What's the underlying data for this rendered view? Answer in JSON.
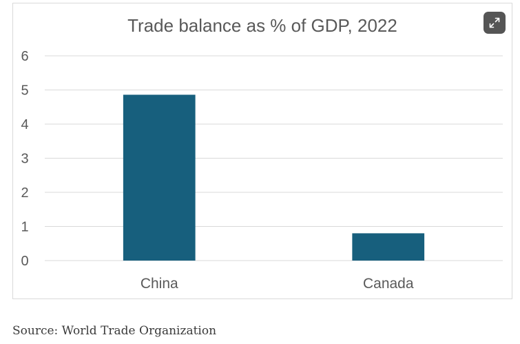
{
  "chart_data": {
    "type": "bar",
    "title": "Trade balance as % of GDP, 2022",
    "categories": [
      "China",
      "Canada"
    ],
    "values": [
      4.86,
      0.8
    ],
    "ylim": [
      0,
      6
    ],
    "yticks": [
      0,
      1,
      2,
      3,
      4,
      5,
      6
    ],
    "grid": true,
    "legend": "none",
    "bar_color": "#175f7d"
  },
  "source": "Source: World Trade Organization",
  "controls": {
    "expand_icon": "expand-icon"
  }
}
